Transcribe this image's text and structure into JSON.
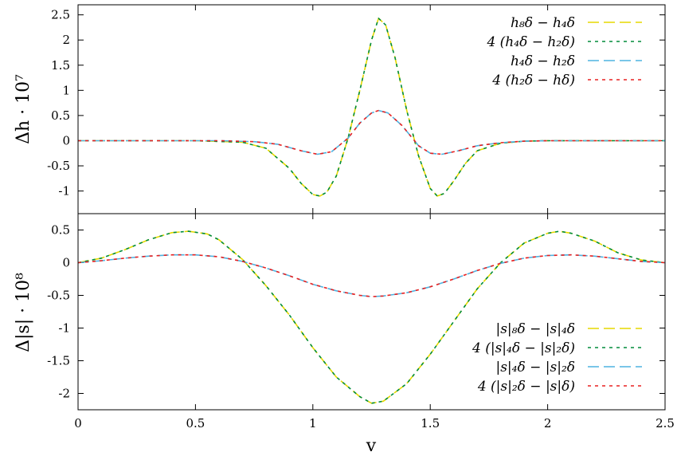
{
  "chart_data": [
    {
      "type": "line",
      "title": "",
      "xlabel": "",
      "ylabel": "Δh · 10⁷",
      "xlim": [
        0,
        2.5
      ],
      "ylim": [
        -1.45,
        2.7
      ],
      "yticks": [
        "-1",
        "-0.5",
        "0",
        "0.5",
        "1",
        "1.5",
        "2",
        "2.5"
      ],
      "legend_position": "top-right",
      "series": [
        {
          "name": "h₈δ − h₄δ",
          "color": "#e6d800",
          "dash": "long",
          "x": [
            0,
            0.5,
            0.7,
            0.8,
            0.9,
            0.95,
            1.0,
            1.03,
            1.06,
            1.1,
            1.15,
            1.2,
            1.25,
            1.28,
            1.31,
            1.35,
            1.4,
            1.45,
            1.5,
            1.53,
            1.56,
            1.6,
            1.65,
            1.7,
            1.8,
            1.9,
            2.0,
            2.5
          ],
          "y": [
            0,
            0,
            -0.03,
            -0.15,
            -0.55,
            -0.85,
            -1.07,
            -1.1,
            -1.02,
            -0.7,
            0.05,
            1.0,
            2.0,
            2.43,
            2.3,
            1.65,
            0.6,
            -0.3,
            -0.95,
            -1.1,
            -1.05,
            -0.8,
            -0.45,
            -0.2,
            -0.05,
            -0.01,
            0,
            0
          ]
        },
        {
          "name": "4 (h₄δ − h₂δ)",
          "color": "#008c3a",
          "dash": "short",
          "x": [
            0,
            0.5,
            0.7,
            0.8,
            0.9,
            0.95,
            1.0,
            1.03,
            1.06,
            1.1,
            1.15,
            1.2,
            1.25,
            1.28,
            1.31,
            1.35,
            1.4,
            1.45,
            1.5,
            1.53,
            1.56,
            1.6,
            1.65,
            1.7,
            1.8,
            1.9,
            2.0,
            2.5
          ],
          "y": [
            0,
            0,
            -0.03,
            -0.15,
            -0.55,
            -0.85,
            -1.07,
            -1.1,
            -1.02,
            -0.7,
            0.05,
            1.0,
            2.0,
            2.43,
            2.3,
            1.65,
            0.6,
            -0.3,
            -0.95,
            -1.1,
            -1.05,
            -0.8,
            -0.45,
            -0.2,
            -0.05,
            -0.01,
            0,
            0
          ]
        },
        {
          "name": "h₄δ − h₂δ",
          "color": "#4fb3e0",
          "dash": "long",
          "x": [
            0,
            0.6,
            0.75,
            0.85,
            0.95,
            1.02,
            1.08,
            1.15,
            1.2,
            1.25,
            1.28,
            1.32,
            1.38,
            1.45,
            1.5,
            1.55,
            1.62,
            1.7,
            1.8,
            1.9,
            2.0,
            2.5
          ],
          "y": [
            0,
            0,
            -0.02,
            -0.07,
            -0.2,
            -0.27,
            -0.22,
            0.05,
            0.35,
            0.55,
            0.6,
            0.55,
            0.3,
            -0.1,
            -0.25,
            -0.27,
            -0.2,
            -0.1,
            -0.04,
            -0.01,
            0,
            0
          ]
        },
        {
          "name": "4 (h₂δ − hδ)",
          "color": "#e82020",
          "dash": "short",
          "x": [
            0,
            0.6,
            0.75,
            0.85,
            0.95,
            1.02,
            1.08,
            1.15,
            1.2,
            1.25,
            1.28,
            1.32,
            1.38,
            1.45,
            1.5,
            1.55,
            1.62,
            1.7,
            1.8,
            1.9,
            2.0,
            2.5
          ],
          "y": [
            0,
            0,
            -0.02,
            -0.07,
            -0.2,
            -0.27,
            -0.22,
            0.05,
            0.35,
            0.55,
            0.6,
            0.55,
            0.3,
            -0.1,
            -0.25,
            -0.27,
            -0.2,
            -0.1,
            -0.04,
            -0.01,
            0,
            0
          ]
        }
      ]
    },
    {
      "type": "line",
      "title": "",
      "xlabel": "v",
      "ylabel": "Δ|s| · 10⁸",
      "xlim": [
        0,
        2.5
      ],
      "ylim": [
        -2.25,
        0.75
      ],
      "xticks": [
        "0",
        "0.5",
        "1",
        "1.5",
        "2",
        "2.5"
      ],
      "yticks": [
        "-2",
        "-1.5",
        "-1",
        "-0.5",
        "0",
        "0.5"
      ],
      "legend_position": "bottom-right",
      "series": [
        {
          "name": "|s|₈δ − |s|₄δ",
          "color": "#e6d800",
          "dash": "long",
          "x": [
            0,
            0.1,
            0.2,
            0.3,
            0.4,
            0.47,
            0.55,
            0.6,
            0.7,
            0.8,
            0.9,
            1.0,
            1.1,
            1.2,
            1.25,
            1.3,
            1.4,
            1.5,
            1.6,
            1.7,
            1.8,
            1.9,
            2.0,
            2.05,
            2.1,
            2.2,
            2.3,
            2.4,
            2.5
          ],
          "y": [
            0,
            0.07,
            0.2,
            0.35,
            0.46,
            0.48,
            0.44,
            0.35,
            0.05,
            -0.35,
            -0.8,
            -1.3,
            -1.75,
            -2.05,
            -2.15,
            -2.12,
            -1.85,
            -1.4,
            -0.9,
            -0.4,
            0.0,
            0.3,
            0.45,
            0.48,
            0.45,
            0.33,
            0.15,
            0.04,
            0
          ]
        },
        {
          "name": "4 (|s|₄δ − |s|₂δ)",
          "color": "#008c3a",
          "dash": "short",
          "x": [
            0,
            0.1,
            0.2,
            0.3,
            0.4,
            0.47,
            0.55,
            0.6,
            0.7,
            0.8,
            0.9,
            1.0,
            1.1,
            1.2,
            1.25,
            1.3,
            1.4,
            1.5,
            1.6,
            1.7,
            1.8,
            1.9,
            2.0,
            2.05,
            2.1,
            2.2,
            2.3,
            2.4,
            2.5
          ],
          "y": [
            0,
            0.07,
            0.2,
            0.35,
            0.46,
            0.48,
            0.44,
            0.35,
            0.05,
            -0.35,
            -0.8,
            -1.3,
            -1.75,
            -2.05,
            -2.15,
            -2.12,
            -1.85,
            -1.4,
            -0.9,
            -0.4,
            0.0,
            0.3,
            0.45,
            0.48,
            0.45,
            0.33,
            0.15,
            0.04,
            0
          ]
        },
        {
          "name": "|s|₄δ − |s|₂δ",
          "color": "#4fb3e0",
          "dash": "long",
          "x": [
            0,
            0.1,
            0.2,
            0.3,
            0.4,
            0.5,
            0.6,
            0.7,
            0.8,
            0.9,
            1.0,
            1.1,
            1.2,
            1.25,
            1.3,
            1.4,
            1.5,
            1.6,
            1.7,
            1.8,
            1.9,
            2.0,
            2.1,
            2.2,
            2.3,
            2.4,
            2.5
          ],
          "y": [
            0,
            0.03,
            0.07,
            0.1,
            0.12,
            0.12,
            0.09,
            0.02,
            -0.08,
            -0.2,
            -0.33,
            -0.43,
            -0.5,
            -0.52,
            -0.51,
            -0.46,
            -0.37,
            -0.25,
            -0.12,
            -0.01,
            0.07,
            0.11,
            0.12,
            0.1,
            0.06,
            0.02,
            0
          ]
        },
        {
          "name": "4 (|s|₂δ − |s|δ)",
          "color": "#e82020",
          "dash": "short",
          "x": [
            0,
            0.1,
            0.2,
            0.3,
            0.4,
            0.5,
            0.6,
            0.7,
            0.8,
            0.9,
            1.0,
            1.1,
            1.2,
            1.25,
            1.3,
            1.4,
            1.5,
            1.6,
            1.7,
            1.8,
            1.9,
            2.0,
            2.1,
            2.2,
            2.3,
            2.4,
            2.5
          ],
          "y": [
            0,
            0.03,
            0.07,
            0.1,
            0.12,
            0.12,
            0.09,
            0.02,
            -0.08,
            -0.2,
            -0.33,
            -0.43,
            -0.5,
            -0.52,
            -0.51,
            -0.46,
            -0.37,
            -0.25,
            -0.12,
            -0.01,
            0.07,
            0.11,
            0.12,
            0.1,
            0.06,
            0.02,
            0
          ]
        }
      ]
    }
  ]
}
